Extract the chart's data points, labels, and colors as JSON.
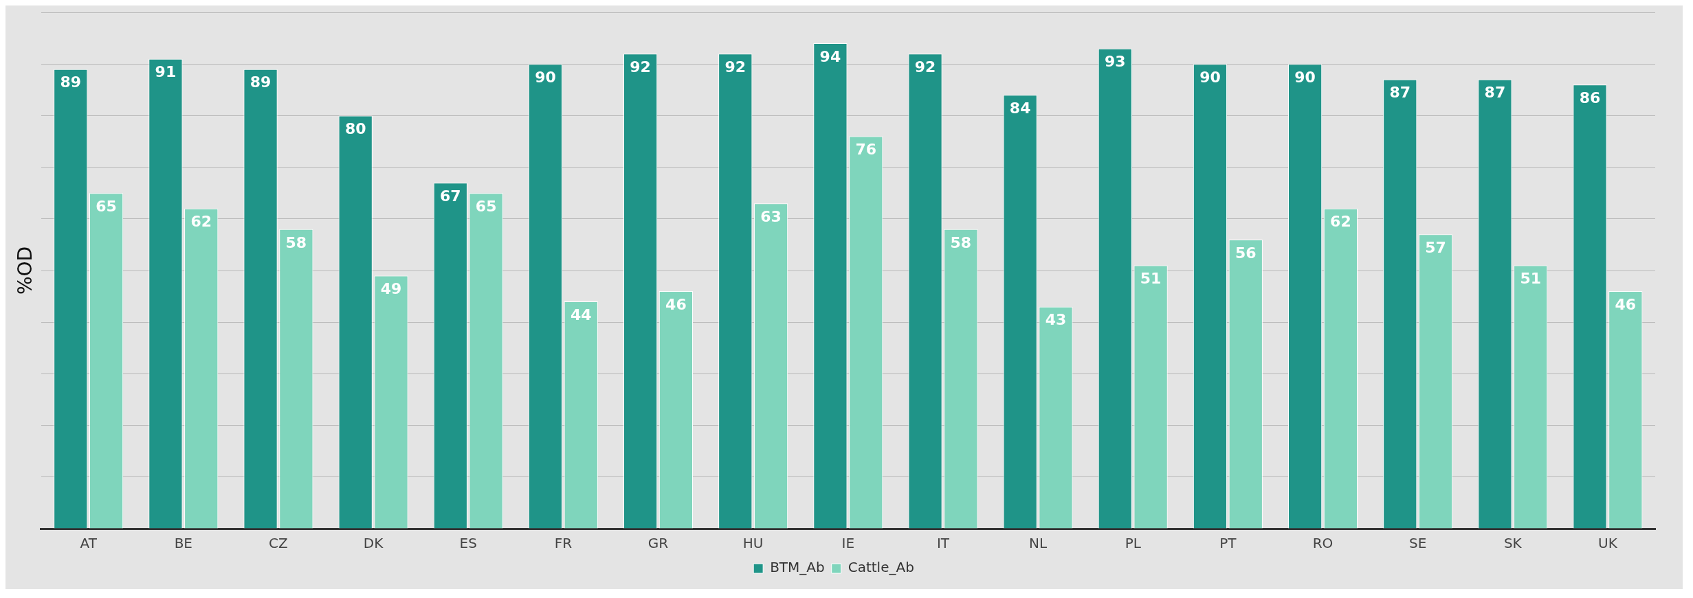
{
  "chart_data": {
    "type": "bar",
    "ylabel": "%OD",
    "categories": [
      "AT",
      "BE",
      "CZ",
      "DK",
      "ES",
      "FR",
      "GR",
      "HU",
      "IE",
      "IT",
      "NL",
      "PL",
      "PT",
      "RO",
      "SE",
      "SK",
      "UK"
    ],
    "series": [
      {
        "name": "BTM_Ab",
        "color": "#1f9488",
        "values": [
          89,
          91,
          89,
          80,
          67,
          90,
          92,
          92,
          94,
          92,
          84,
          93,
          90,
          90,
          87,
          87,
          86
        ]
      },
      {
        "name": "Cattle_Ab",
        "color": "#7fd5bc",
        "values": [
          65,
          62,
          58,
          49,
          65,
          44,
          46,
          63,
          76,
          58,
          43,
          51,
          56,
          62,
          57,
          51,
          46
        ]
      }
    ],
    "ylim": [
      0,
      100
    ],
    "yticks": [
      {
        "value": 0,
        "label": null
      },
      {
        "value": 10,
        "label": null
      },
      {
        "value": 20,
        "label": null
      },
      {
        "value": 30,
        "label": null
      },
      {
        "value": 40,
        "label": null
      },
      {
        "value": 50,
        "label": null
      },
      {
        "value": 60,
        "label": null
      },
      {
        "value": 70,
        "label": null
      },
      {
        "value": 80,
        "label": null
      },
      {
        "value": 90,
        "label": null
      },
      {
        "value": 100,
        "label": null
      }
    ],
    "tick_labels": "x",
    "grid": "y",
    "legend": "bottom",
    "data_labels": true
  }
}
